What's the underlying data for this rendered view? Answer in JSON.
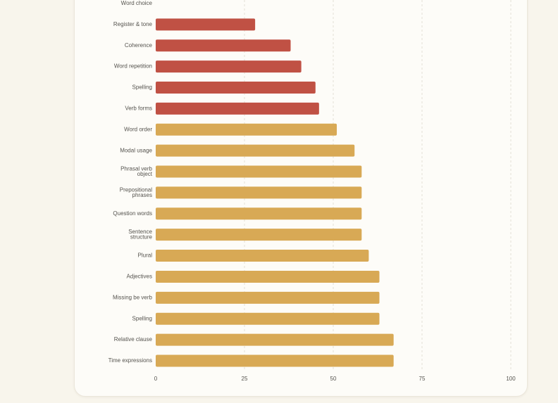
{
  "colors": {
    "page_background": "#f8f5ec",
    "card_background": "#fdfcf8",
    "low_bar": "#c05144",
    "mid_bar": "#d8a955",
    "grid": "#e4e0d6",
    "label_text": "#55534e"
  },
  "chart_data": {
    "type": "bar",
    "orientation": "horizontal",
    "title": "",
    "xlabel": "",
    "ylabel": "",
    "xlim": [
      0,
      100
    ],
    "x_ticks": [
      "0",
      "25",
      "50",
      "75",
      "100"
    ],
    "grid": "vertical dashed",
    "legend": "none",
    "categories": [
      [
        "Word choice"
      ],
      [
        "Register & tone"
      ],
      [
        "Coherence"
      ],
      [
        "Word repetition"
      ],
      [
        "Spelling"
      ],
      [
        "Verb forms"
      ],
      [
        "Word order"
      ],
      [
        "Modal usage"
      ],
      [
        "Phrasal verb",
        "object"
      ],
      [
        "Prepositional",
        "phrases"
      ],
      [
        "Question words"
      ],
      [
        "Sentence",
        "structure"
      ],
      [
        "Plural"
      ],
      [
        "Adjectives"
      ],
      [
        "Missing be verb"
      ],
      [
        "Spelling"
      ],
      [
        "Relative clause"
      ],
      [
        "Time expressions"
      ]
    ],
    "values": [
      0,
      28,
      38,
      41,
      45,
      46,
      51,
      56,
      58,
      58,
      58,
      58,
      60,
      63,
      63,
      63,
      67,
      67
    ],
    "bar_colors": [
      "#c05144",
      "#c05144",
      "#c05144",
      "#c05144",
      "#c05144",
      "#c05144",
      "#d8a955",
      "#d8a955",
      "#d8a955",
      "#d8a955",
      "#d8a955",
      "#d8a955",
      "#d8a955",
      "#d8a955",
      "#d8a955",
      "#d8a955",
      "#d8a955",
      "#d8a955"
    ]
  }
}
